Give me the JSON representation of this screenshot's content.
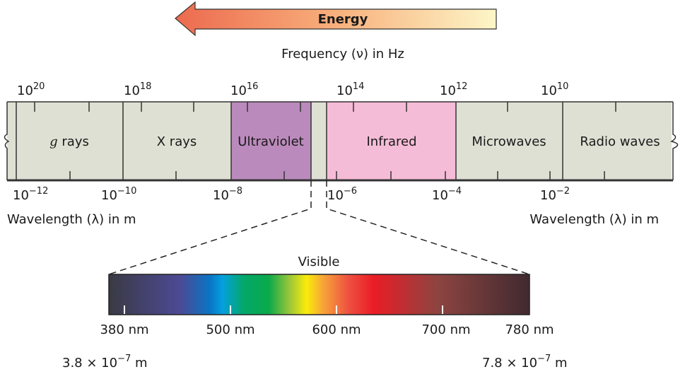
{
  "energy_arrow": {
    "label": "Energy",
    "direction": "left",
    "colors": [
      "#ec6a4e",
      "#fdf6c8"
    ]
  },
  "frequency_axis": {
    "label": "Frequency (ν) in Hz",
    "ticks": [
      {
        "base": "10",
        "exp": "20"
      },
      {
        "base": "10",
        "exp": "18"
      },
      {
        "base": "10",
        "exp": "16"
      },
      {
        "base": "10",
        "exp": "14"
      },
      {
        "base": "10",
        "exp": "12"
      },
      {
        "base": "10",
        "exp": "10"
      }
    ]
  },
  "bands": [
    {
      "prefix": "g",
      "label": " rays",
      "color": "#dfe0d4"
    },
    {
      "prefix": "",
      "label": "X rays",
      "color": "#dfe0d4"
    },
    {
      "prefix": "",
      "label": "Ultraviolet",
      "color": "#bb8abc"
    },
    {
      "prefix": "",
      "label": "",
      "color": "#dfe0d4"
    },
    {
      "prefix": "",
      "label": "Infrared",
      "color": "#f5bcd7"
    },
    {
      "prefix": "",
      "label": "Microwaves",
      "color": "#dfe0d4"
    },
    {
      "prefix": "",
      "label": "Radio waves",
      "color": "#dfe0d4"
    }
  ],
  "wavelength_axis": {
    "label_left": "Wavelength (λ) in m",
    "label_right": "Wavelength (λ) in m",
    "ticks": [
      {
        "base": "10",
        "exp": "−12"
      },
      {
        "base": "10",
        "exp": "−10"
      },
      {
        "base": "10",
        "exp": "−8"
      },
      {
        "base": "10",
        "exp": "−6"
      },
      {
        "base": "10",
        "exp": "−4"
      },
      {
        "base": "10",
        "exp": "−2"
      }
    ]
  },
  "visible": {
    "title": "Visible",
    "ticks": [
      "380 nm",
      "500 nm",
      "600 nm",
      "700 nm",
      "780 nm"
    ],
    "min_m": {
      "mant": "3.8 × 10",
      "exp": "−7",
      "unit": " m"
    },
    "max_m": {
      "mant": "7.8 × 10",
      "exp": "−7",
      "unit": " m"
    }
  }
}
